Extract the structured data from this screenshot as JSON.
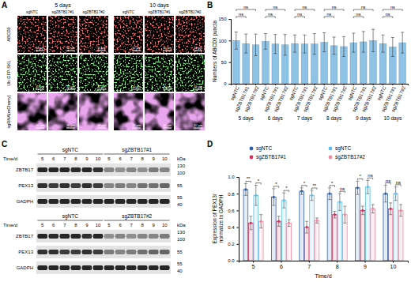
{
  "chart_data": [
    {
      "type": "bar",
      "y_label": "Numbers of ABCD3 puncta",
      "categories": [
        "sgNTC",
        "sgZBTB17#1",
        "sgZBTB17#2",
        "sgNTC",
        "sgZBTB17#1",
        "sgZBTB17#2",
        "sgNTC",
        "sgZBTB17#1",
        "sgZBTB17#2",
        "sgNTC",
        "sgZBTB17#1",
        "sgZBTB17#2",
        "sgNTC",
        "sgZBTB17#1",
        "sgZBTB17#2",
        "sgNTC",
        "sgZBTB17#1",
        "sgZBTB17#2"
      ],
      "groups": [
        "5 days",
        "6 days",
        "7 days",
        "8 days",
        "9 days",
        "10 days"
      ],
      "values": [
        100,
        93,
        90,
        98,
        92,
        90,
        93,
        92,
        92,
        96,
        88,
        86,
        95,
        97,
        100,
        93,
        85,
        95
      ],
      "errors": [
        20,
        22,
        25,
        18,
        22,
        24,
        20,
        21,
        24,
        22,
        20,
        23,
        22,
        24,
        26,
        20,
        22,
        24
      ],
      "significance": [
        null,
        "ns",
        "ns",
        null,
        "ns",
        "ns",
        null,
        "ns",
        "ns",
        null,
        "ns",
        "ns",
        null,
        "ns",
        "ns",
        null,
        "ns",
        "ns"
      ],
      "color": "#8fc3e6",
      "ylim": [
        0,
        150
      ],
      "yticks": [
        0,
        50,
        100,
        150
      ]
    },
    {
      "type": "bar",
      "x_label": "Time/d",
      "y_label": [
        "Expression of PEX13/",
        "normalize to GADPH"
      ],
      "categories": [
        5,
        6,
        7,
        8,
        9,
        10
      ],
      "ylim": [
        0,
        1
      ],
      "yticks": [
        {
          "value": 0,
          "label": "0.0"
        },
        {
          "value": 0.2,
          "label": "0.2"
        },
        {
          "value": 0.4,
          "label": "0.4"
        },
        {
          "value": 0.6,
          "label": "0.6"
        },
        {
          "value": 0.8,
          "label": "0.8"
        },
        {
          "value": 1,
          "label": "1.0"
        }
      ],
      "legend": "top",
      "series": [
        {
          "name": "sgNTC",
          "color": "#2f5fa8",
          "values": [
            0.85,
            0.76,
            0.83,
            0.8,
            0.87,
            0.8
          ],
          "errors": [
            0.07,
            0.1,
            0.04,
            0.07,
            0.08,
            0.1
          ]
        },
        {
          "name": "sgZBTB17#1",
          "color": "#d62f5a",
          "values": [
            0.45,
            0.47,
            0.4,
            0.55,
            0.6,
            0.62
          ],
          "errors": [
            0.08,
            0.06,
            0.07,
            0.04,
            0.05,
            0.07
          ],
          "significance": [
            "**",
            "*",
            "*",
            "*",
            "*",
            "ns"
          ]
        },
        {
          "name": "sgNTC",
          "color": "#5bc0eb",
          "values": [
            0.78,
            0.72,
            0.78,
            0.7,
            0.88,
            0.8
          ],
          "errors": [
            0.12,
            0.09,
            0.06,
            0.1,
            0.08,
            0.08
          ]
        },
        {
          "name": "sgZBTB17#2",
          "color": "#f08aa0",
          "values": [
            0.47,
            0.45,
            0.48,
            0.55,
            0.62,
            0.6
          ],
          "errors": [
            0.08,
            0.04,
            0.03,
            0.1,
            0.05,
            0.07
          ],
          "significance": [
            "*",
            "*",
            "**",
            "ns",
            "ns",
            "ns"
          ]
        }
      ]
    }
  ],
  "panel_labels": [
    "A",
    "B",
    "C",
    "D"
  ],
  "images": {
    "groups": [
      "5 days",
      "10 days"
    ],
    "columns": [
      "sgNTC",
      "sgZBTB17#1",
      "sgZBTB17#2"
    ],
    "rows": [
      {
        "name": "ABCD3",
        "color": "#ff2a2a"
      },
      {
        "name": "Ub-GFP-SKL",
        "color": "#3cff3c"
      },
      {
        "name": "sgRNA(mCherry)",
        "color": "#d060d8"
      }
    ],
    "scale_bar": "10 μm"
  },
  "blots": [
    {
      "groups": [
        "sgNTC",
        "sgZBTB17#1"
      ],
      "time_label": "Time/d",
      "lanes": [
        5,
        6,
        7,
        8,
        9,
        10,
        5,
        6,
        7,
        8,
        9,
        10
      ],
      "unit": "kDa",
      "rows": [
        {
          "name": "ZBTB17",
          "markers": [
            130,
            100
          ],
          "intensity": [
            0.9,
            0.9,
            0.9,
            0.88,
            0.9,
            0.85,
            0.45,
            0.4,
            0.45,
            0.4,
            0.5,
            0.45
          ]
        },
        {
          "name": "PEX13",
          "markers": [
            55
          ],
          "intensity": [
            0.85,
            0.8,
            0.85,
            0.8,
            0.85,
            0.8,
            0.45,
            0.5,
            0.45,
            0.55,
            0.55,
            0.6
          ]
        },
        {
          "name": "GADPH",
          "markers": [
            55,
            40
          ],
          "intensity": [
            0.9,
            0.9,
            0.9,
            0.9,
            0.9,
            0.9,
            0.9,
            0.9,
            0.9,
            0.9,
            0.9,
            0.9
          ]
        }
      ]
    },
    {
      "groups": [
        "sgNTC",
        "sgZBTB17#2"
      ],
      "time_label": "Time/d",
      "lanes": [
        5,
        6,
        7,
        8,
        9,
        10,
        5,
        6,
        7,
        8,
        9,
        10
      ],
      "unit": "kDa",
      "rows": [
        {
          "name": "ZBTB17",
          "markers": [
            130,
            100
          ],
          "intensity": [
            0.9,
            0.88,
            0.9,
            0.9,
            0.85,
            0.9,
            0.4,
            0.45,
            0.4,
            0.45,
            0.45,
            0.5
          ]
        },
        {
          "name": "PEX13",
          "markers": [
            55
          ],
          "intensity": [
            0.85,
            0.85,
            0.8,
            0.8,
            0.85,
            0.8,
            0.5,
            0.45,
            0.5,
            0.55,
            0.6,
            0.6
          ]
        },
        {
          "name": "GADPH",
          "markers": [
            55,
            40
          ],
          "intensity": [
            0.9,
            0.9,
            0.9,
            0.9,
            0.9,
            0.9,
            0.9,
            0.9,
            0.9,
            0.9,
            0.9,
            0.9
          ]
        }
      ]
    }
  ]
}
